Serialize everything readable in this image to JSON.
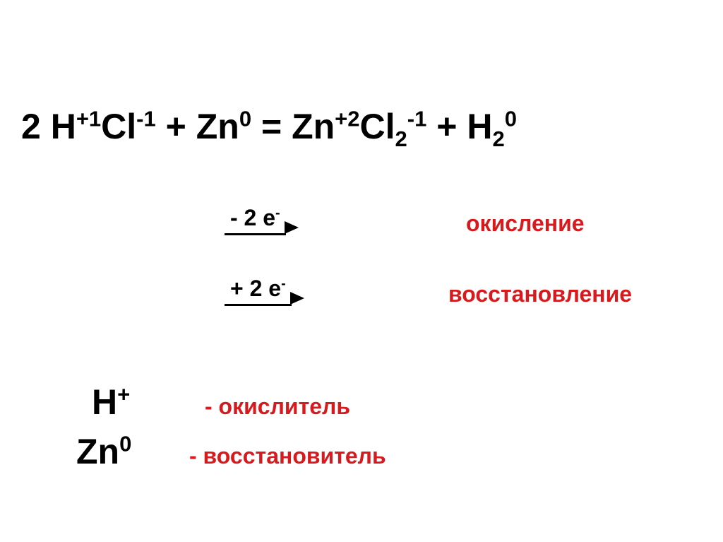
{
  "equation": {
    "coeff1": "2 ",
    "H": "H",
    "H_sup": "+1",
    "Cl": "Cl",
    "Cl_sup": "-1",
    "plus1": " + ",
    "Zn": "Zn",
    "Zn_sup": "0",
    "eq": " = ",
    "Zn2": "Zn",
    "Zn2_sup": "+2",
    "Cl2": "Cl",
    "Cl2_sub": "2",
    "Cl2_sup": "-1",
    "plus2": " + ",
    "H2": "H",
    "H2_sub": "2",
    "H2_sup": "0"
  },
  "arrows": {
    "loss": "- 2 е",
    "loss_sup": "-",
    "gain": "+ 2 е",
    "gain_sup": "-"
  },
  "labels": {
    "oxidation": "окисление",
    "reduction": "восстановление"
  },
  "roles": {
    "oxidizer_sym": "H",
    "oxidizer_sup": "+",
    "oxidizer_text": "- окислитель",
    "reducer_sym": "Zn",
    "reducer_sup": "0",
    "reducer_text": "- восстановитель"
  },
  "style": {
    "text_color": "#000000",
    "accent_color": "#d71a1d",
    "background": "#ffffff",
    "main_fontsize": 50,
    "label_fontsize": 32,
    "font_weight": 900,
    "arrow_head_size": 20
  }
}
